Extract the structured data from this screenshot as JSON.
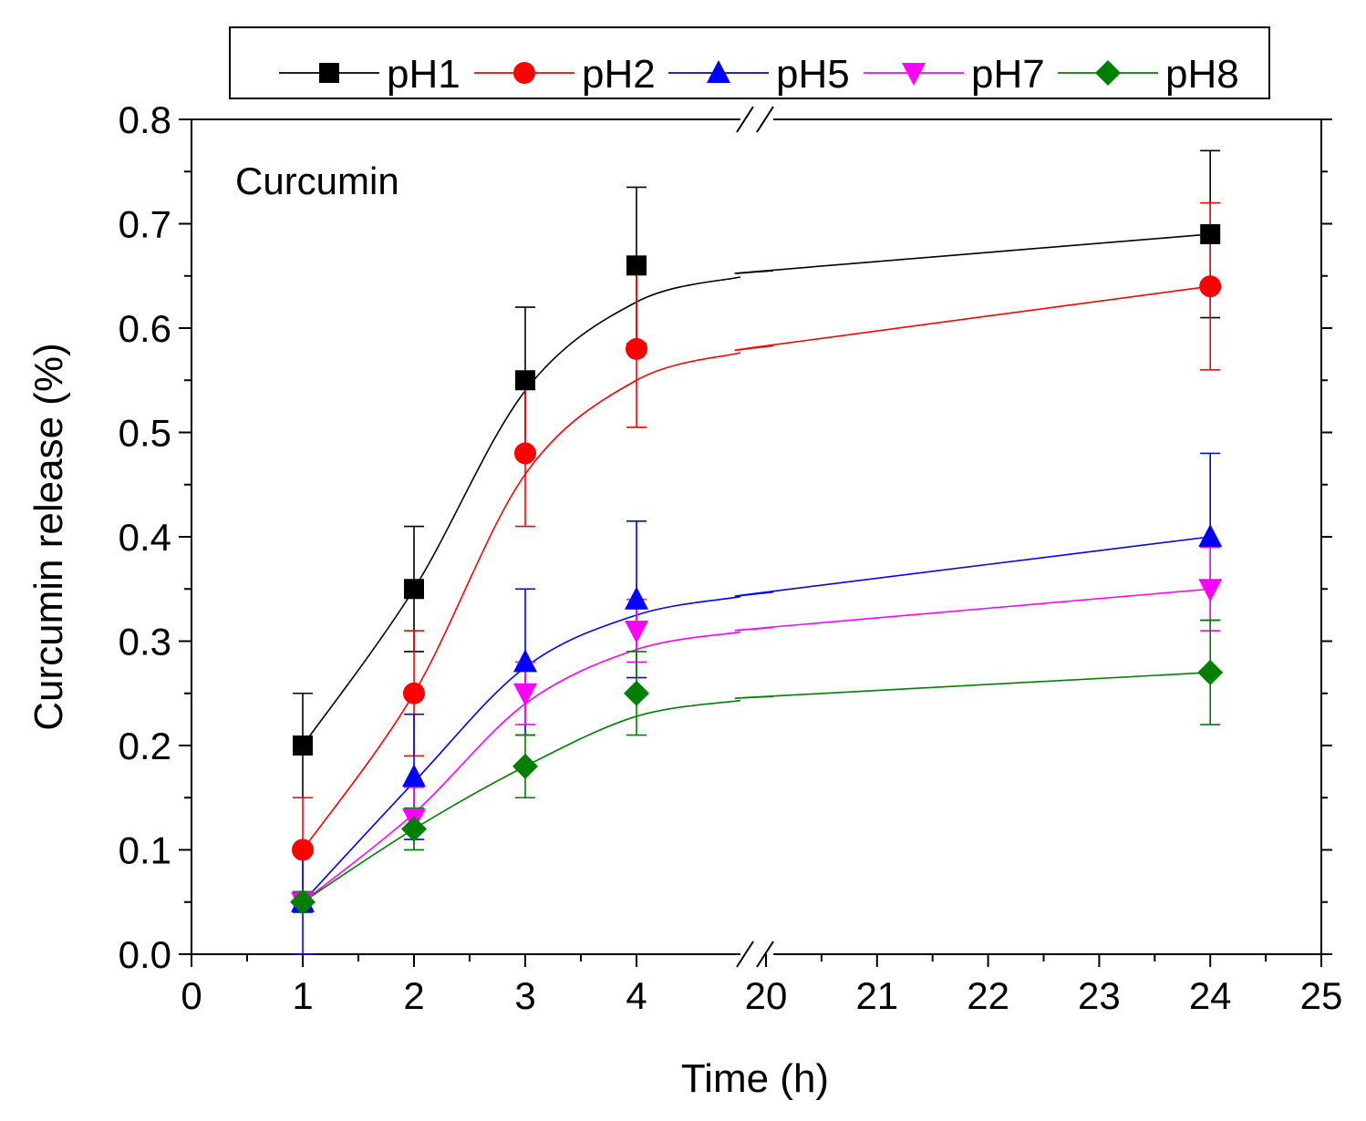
{
  "chart_data": {
    "type": "line",
    "title": "",
    "annotation": "Curcumin",
    "xlabel": "Time (h)",
    "ylabel": "Curcumin release (%)",
    "ylim": [
      0,
      0.8
    ],
    "y_ticks": [
      "0.0",
      "0.1",
      "0.2",
      "0.3",
      "0.4",
      "0.5",
      "0.6",
      "0.7",
      "0.8"
    ],
    "x_axis_break": "between 4 and 20",
    "x_ticks": [
      "0",
      "1",
      "2",
      "3",
      "4",
      "20",
      "21",
      "22",
      "23",
      "24",
      "25"
    ],
    "x_tick_values": [
      0,
      1,
      2,
      3,
      4,
      20,
      21,
      22,
      23,
      24,
      25
    ],
    "x": [
      1,
      2,
      3,
      4,
      24
    ],
    "legend_position": "top (above plot)",
    "series": [
      {
        "name": "pH1",
        "color": "#000000",
        "marker": "square",
        "values": [
          0.2,
          0.35,
          0.55,
          0.66,
          0.69
        ],
        "error": [
          0.05,
          0.06,
          0.07,
          0.075,
          0.08
        ]
      },
      {
        "name": "pH2",
        "color": "#ff0000",
        "marker": "circle",
        "values": [
          0.1,
          0.25,
          0.48,
          0.58,
          0.64
        ],
        "error": [
          0.05,
          0.06,
          0.07,
          0.075,
          0.08
        ]
      },
      {
        "name": "pH5",
        "color": "#0000ff",
        "marker": "triangle-up",
        "values": [
          0.05,
          0.17,
          0.28,
          0.34,
          0.4
        ],
        "error": [
          0.05,
          0.06,
          0.07,
          0.075,
          0.08
        ]
      },
      {
        "name": "pH7",
        "color": "#ff00ff",
        "marker": "triangle-down",
        "values": [
          0.05,
          0.13,
          0.25,
          0.31,
          0.35
        ],
        "error": [
          0.01,
          0.03,
          0.03,
          0.03,
          0.04
        ]
      },
      {
        "name": "pH8",
        "color": "#008000",
        "marker": "diamond",
        "values": [
          0.05,
          0.12,
          0.18,
          0.25,
          0.27
        ],
        "error": [
          0.01,
          0.02,
          0.03,
          0.04,
          0.05
        ]
      }
    ],
    "fit_curves": [
      {
        "series": "pH1",
        "y": [
          0.2,
          0.35,
          0.54,
          0.625,
          0.655,
          0.69
        ]
      },
      {
        "series": "pH2",
        "y": [
          0.1,
          0.25,
          0.46,
          0.55,
          0.583,
          0.64
        ]
      },
      {
        "series": "pH5",
        "y": [
          0.05,
          0.165,
          0.275,
          0.325,
          0.347,
          0.4
        ]
      },
      {
        "series": "pH7",
        "y": [
          0.05,
          0.135,
          0.24,
          0.292,
          0.313,
          0.35
        ]
      },
      {
        "series": "pH8",
        "y": [
          0.05,
          0.12,
          0.18,
          0.228,
          0.247,
          0.27
        ]
      }
    ],
    "fit_x": [
      1,
      2,
      3,
      4,
      20,
      24
    ]
  }
}
